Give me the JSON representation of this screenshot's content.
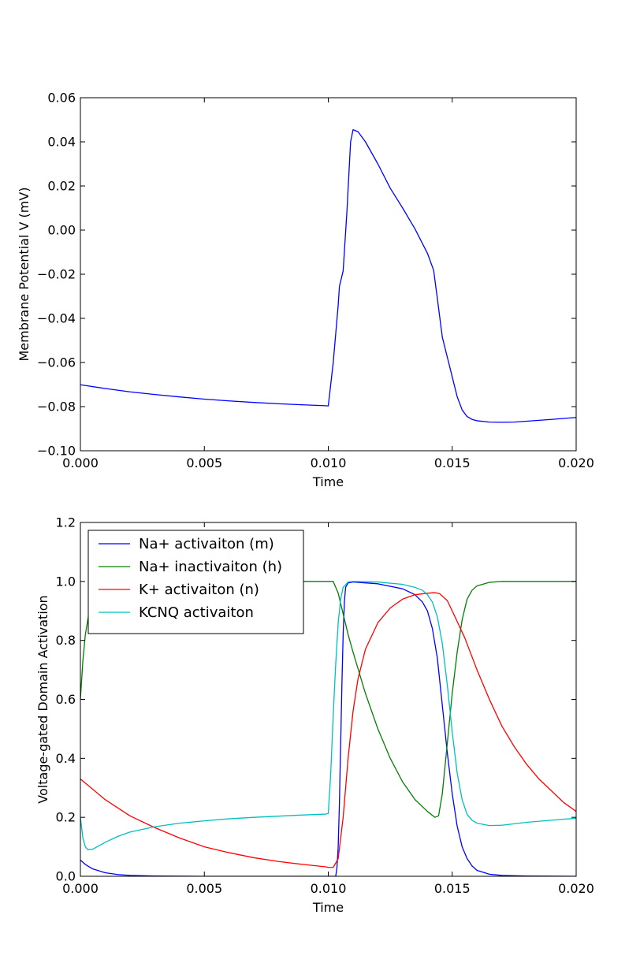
{
  "chart_data": [
    {
      "type": "line",
      "xlabel": "Time",
      "ylabel": "Membrane Potential V (mV)",
      "xlim": [
        0.0,
        0.02
      ],
      "ylim": [
        -0.1,
        0.06
      ],
      "xticks": [
        "0.000",
        "0.005",
        "0.010",
        "0.015",
        "0.020"
      ],
      "yticks": [
        "−0.10",
        "−0.08",
        "−0.06",
        "−0.04",
        "−0.02",
        "0.00",
        "0.02",
        "0.04",
        "0.06"
      ],
      "series": [
        {
          "color": "#0000ff",
          "x": [
            0.0,
            0.001,
            0.002,
            0.003,
            0.004,
            0.005,
            0.006,
            0.007,
            0.008,
            0.009,
            0.0099,
            0.01,
            0.0102,
            0.0104,
            0.01045,
            0.0106,
            0.01075,
            0.0109,
            0.011,
            0.0112,
            0.0115,
            0.012,
            0.0125,
            0.013,
            0.0135,
            0.014,
            0.01425,
            0.0144,
            0.0146,
            0.0148,
            0.015,
            0.0152,
            0.0154,
            0.0156,
            0.0158,
            0.016,
            0.0165,
            0.017,
            0.0175,
            0.018,
            0.019,
            0.02
          ],
          "y": [
            -0.0701,
            -0.0718,
            -0.0733,
            -0.0745,
            -0.0756,
            -0.0766,
            -0.0774,
            -0.0781,
            -0.0787,
            -0.0792,
            -0.0796,
            -0.0797,
            -0.06,
            -0.034,
            -0.0255,
            -0.0185,
            0.008,
            0.04,
            0.0455,
            0.0446,
            0.04,
            0.03,
            0.019,
            0.01,
            0.0005,
            -0.0105,
            -0.0182,
            -0.031,
            -0.0485,
            -0.0575,
            -0.0665,
            -0.0755,
            -0.0815,
            -0.0845,
            -0.0858,
            -0.0864,
            -0.087,
            -0.0871,
            -0.087,
            -0.0866,
            -0.0858,
            -0.0849
          ]
        }
      ]
    },
    {
      "type": "line",
      "xlabel": "Time",
      "ylabel": "Voltage-gated Domain Activation",
      "xlim": [
        0.0,
        0.02
      ],
      "ylim": [
        0.0,
        1.2
      ],
      "xticks": [
        "0.000",
        "0.005",
        "0.010",
        "0.015",
        "0.020"
      ],
      "yticks": [
        "0.0",
        "0.2",
        "0.4",
        "0.6",
        "0.8",
        "1.0",
        "1.2"
      ],
      "legend": "upper-left",
      "series": [
        {
          "name": "Na+ activaiton (m)",
          "color": "#0000ff",
          "x": [
            0.0,
            0.0002,
            0.0005,
            0.001,
            0.0015,
            0.002,
            0.003,
            0.005,
            0.008,
            0.01,
            0.0103,
            0.01035,
            0.0104,
            0.01045,
            0.0105,
            0.01055,
            0.0106,
            0.01065,
            0.0107,
            0.0108,
            0.011,
            0.012,
            0.013,
            0.0135,
            0.0138,
            0.014,
            0.0142,
            0.0144,
            0.0146,
            0.0148,
            0.015,
            0.0152,
            0.0154,
            0.0156,
            0.0158,
            0.016,
            0.0165,
            0.017,
            0.018,
            0.02
          ],
          "y": [
            0.055,
            0.04,
            0.025,
            0.012,
            0.006,
            0.003,
            0.001,
            0.0,
            0.0,
            0.0,
            0.0,
            0.03,
            0.1,
            0.25,
            0.45,
            0.65,
            0.82,
            0.93,
            0.98,
            0.995,
            0.998,
            0.992,
            0.975,
            0.955,
            0.93,
            0.9,
            0.84,
            0.74,
            0.58,
            0.42,
            0.28,
            0.17,
            0.1,
            0.06,
            0.035,
            0.02,
            0.007,
            0.003,
            0.001,
            0.0
          ]
        },
        {
          "name": "Na+ inactivaiton (h)",
          "color": "#008000",
          "x": [
            0.0,
            0.0001,
            0.0002,
            0.0004,
            0.0006,
            0.0008,
            0.001,
            0.0015,
            0.002,
            0.005,
            0.01,
            0.0102,
            0.0104,
            0.0106,
            0.0108,
            0.011,
            0.0115,
            0.012,
            0.0125,
            0.013,
            0.0135,
            0.014,
            0.0143,
            0.01445,
            0.0146,
            0.0148,
            0.015,
            0.0152,
            0.0154,
            0.0156,
            0.0158,
            0.016,
            0.0165,
            0.017,
            0.018,
            0.02
          ],
          "y": [
            0.6,
            0.73,
            0.82,
            0.92,
            0.96,
            0.98,
            0.99,
            0.998,
            1.0,
            1.0,
            1.0,
            1.0,
            0.96,
            0.89,
            0.82,
            0.76,
            0.62,
            0.5,
            0.4,
            0.32,
            0.26,
            0.22,
            0.2,
            0.205,
            0.28,
            0.45,
            0.62,
            0.76,
            0.87,
            0.94,
            0.97,
            0.985,
            0.997,
            1.0,
            1.0,
            1.0
          ]
        },
        {
          "name": "K+ activaiton (n)",
          "color": "#ff0000",
          "x": [
            0.0,
            0.001,
            0.002,
            0.003,
            0.004,
            0.005,
            0.006,
            0.007,
            0.008,
            0.009,
            0.0099,
            0.01,
            0.0102,
            0.0104,
            0.0106,
            0.0108,
            0.011,
            0.0112,
            0.0115,
            0.012,
            0.0125,
            0.013,
            0.0135,
            0.014,
            0.0143,
            0.0145,
            0.0148,
            0.015,
            0.0155,
            0.016,
            0.0165,
            0.017,
            0.0175,
            0.018,
            0.0185,
            0.019,
            0.0195,
            0.02
          ],
          "y": [
            0.33,
            0.26,
            0.205,
            0.165,
            0.13,
            0.1,
            0.08,
            0.063,
            0.05,
            0.04,
            0.032,
            0.03,
            0.03,
            0.06,
            0.2,
            0.4,
            0.56,
            0.67,
            0.77,
            0.86,
            0.91,
            0.94,
            0.955,
            0.96,
            0.962,
            0.958,
            0.935,
            0.9,
            0.81,
            0.7,
            0.6,
            0.51,
            0.44,
            0.38,
            0.33,
            0.29,
            0.25,
            0.22
          ]
        },
        {
          "name": "KCNQ activaiton",
          "color": "#00bfbf",
          "x": [
            0.0,
            0.0001,
            0.0002,
            0.0003,
            0.0005,
            0.001,
            0.0015,
            0.002,
            0.003,
            0.004,
            0.005,
            0.006,
            0.007,
            0.008,
            0.009,
            0.0099,
            0.01,
            0.0101,
            0.0102,
            0.0103,
            0.0104,
            0.0105,
            0.0106,
            0.0108,
            0.011,
            0.012,
            0.013,
            0.0135,
            0.0138,
            0.014,
            0.0142,
            0.0144,
            0.0146,
            0.0148,
            0.015,
            0.0152,
            0.0154,
            0.0156,
            0.0158,
            0.016,
            0.0165,
            0.017,
            0.0175,
            0.018,
            0.019,
            0.02
          ],
          "y": [
            0.2,
            0.13,
            0.1,
            0.09,
            0.092,
            0.115,
            0.135,
            0.15,
            0.168,
            0.18,
            0.188,
            0.195,
            0.2,
            0.204,
            0.208,
            0.211,
            0.213,
            0.35,
            0.55,
            0.72,
            0.86,
            0.94,
            0.98,
            0.998,
            1.0,
            0.998,
            0.99,
            0.98,
            0.97,
            0.955,
            0.93,
            0.88,
            0.79,
            0.65,
            0.49,
            0.35,
            0.26,
            0.21,
            0.19,
            0.18,
            0.172,
            0.173,
            0.178,
            0.183,
            0.19,
            0.197
          ]
        }
      ]
    }
  ]
}
